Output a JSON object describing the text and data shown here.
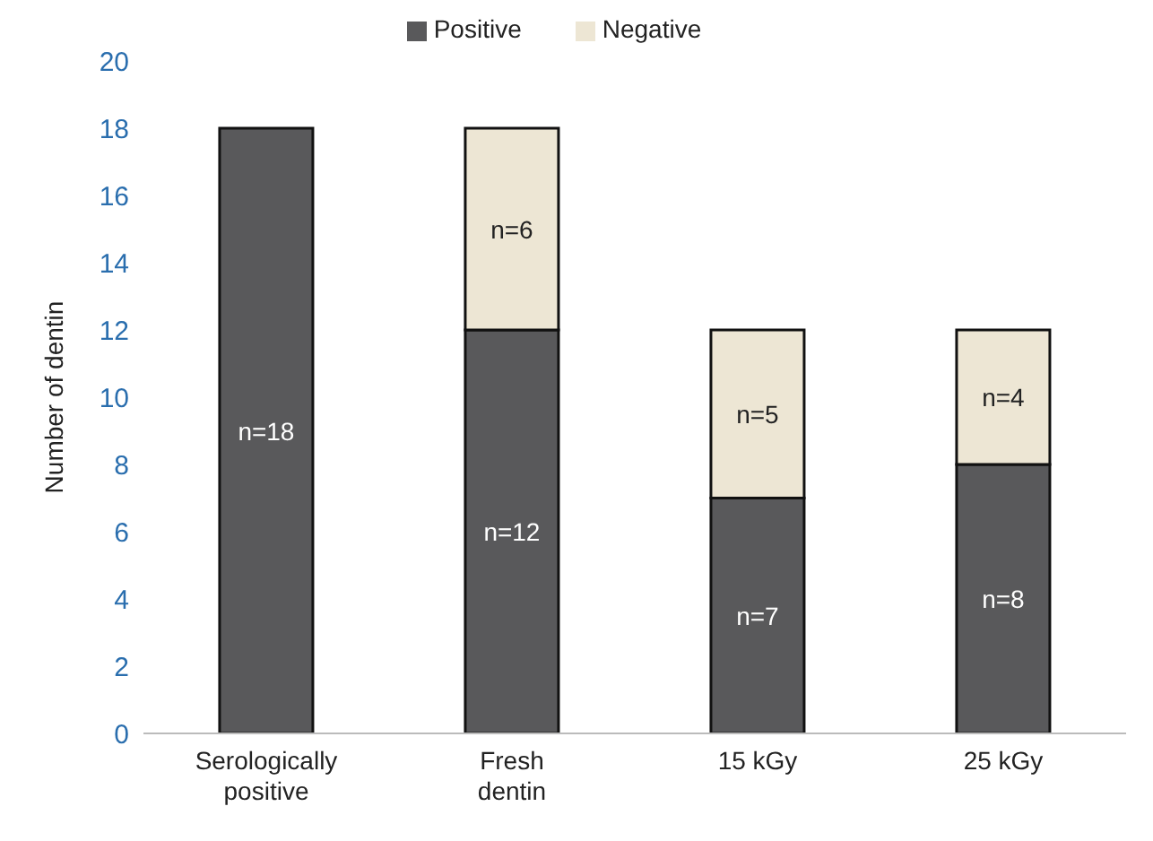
{
  "chart_data": {
    "type": "bar",
    "stacked": true,
    "ylabel": "Number of dentin",
    "categories": [
      "Serologically positive",
      "Fresh dentin",
      "15 kGy",
      "25 kGy"
    ],
    "series": [
      {
        "name": "Positive",
        "color": "#59595b",
        "values": [
          18,
          12,
          7,
          8
        ],
        "value_labels": [
          "n=18",
          "n=12",
          "n=7",
          "n=8"
        ]
      },
      {
        "name": "Negative",
        "color": "#ede6d4",
        "values": [
          null,
          6,
          5,
          4
        ],
        "value_labels": [
          null,
          "n=6",
          "n=5",
          "n=4"
        ]
      }
    ],
    "ylim": [
      0,
      20
    ],
    "yticks": [
      0,
      2,
      4,
      6,
      8,
      10,
      12,
      14,
      16,
      18,
      20
    ],
    "grid": false,
    "legend": "top"
  }
}
